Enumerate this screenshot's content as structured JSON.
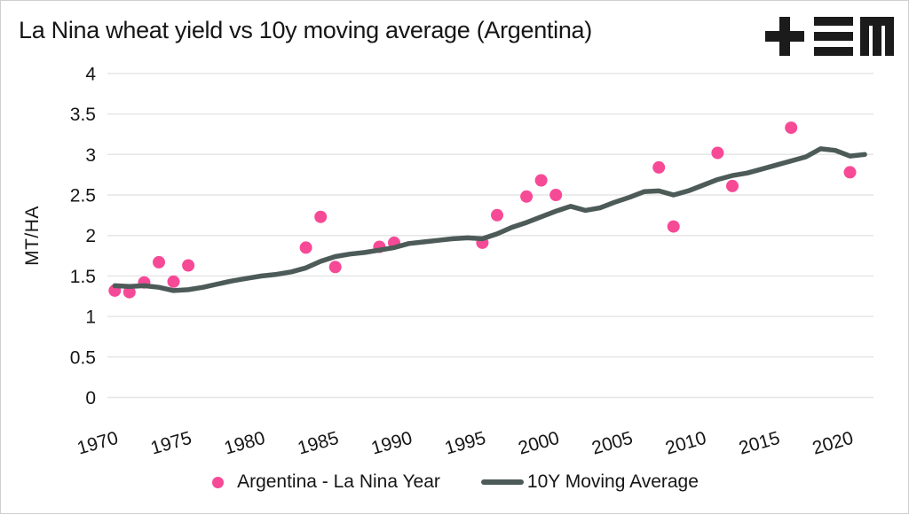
{
  "header": {
    "logo_icon": "tem-logo"
  },
  "colors": {
    "scatter": "#f64a97",
    "line": "#4d5b58",
    "grid": "#e6e6e6",
    "text": "#161616",
    "logo": "#1b1b1b",
    "background": "#ffffff"
  },
  "chart_data": {
    "type": "scatter",
    "title": "La Nina wheat yield vs 10y moving average (Argentina)",
    "xlabel": "",
    "ylabel": "MT/HA",
    "xlim": [
      1969.5,
      2021.6
    ],
    "ylim": [
      0,
      4
    ],
    "x_ticks": [
      1970,
      1975,
      1980,
      1985,
      1990,
      1995,
      2000,
      2005,
      2010,
      2015,
      2020
    ],
    "y_ticks": [
      "0",
      "0.5",
      "1",
      "1.5",
      "2",
      "2.5",
      "3",
      "3.5",
      "4"
    ],
    "grid": "horizontal",
    "legend_position": "bottom",
    "series": [
      {
        "name": "Argentina - La Nina Year",
        "type": "scatter",
        "color": "#f64a97",
        "x": [
          1970,
          1971,
          1972,
          1973,
          1974,
          1975,
          1983,
          1984,
          1985,
          1988,
          1989,
          1995,
          1996,
          1998,
          1999,
          2000,
          2007,
          2008,
          2011,
          2012,
          2016,
          2020
        ],
        "y": [
          1.32,
          1.3,
          1.42,
          1.67,
          1.43,
          1.63,
          1.85,
          2.23,
          1.61,
          1.86,
          1.91,
          1.91,
          2.25,
          2.48,
          2.68,
          2.5,
          2.84,
          2.11,
          3.02,
          2.61,
          3.33,
          2.78
        ]
      },
      {
        "name": "10Y Moving Average",
        "type": "line",
        "color": "#4d5b58",
        "x": [
          1970,
          1971,
          1972,
          1973,
          1974,
          1975,
          1976,
          1977,
          1978,
          1979,
          1980,
          1981,
          1982,
          1983,
          1984,
          1985,
          1986,
          1987,
          1988,
          1989,
          1990,
          1991,
          1992,
          1993,
          1994,
          1995,
          1996,
          1997,
          1998,
          1999,
          2000,
          2001,
          2002,
          2003,
          2004,
          2005,
          2006,
          2007,
          2008,
          2009,
          2010,
          2011,
          2012,
          2013,
          2014,
          2015,
          2016,
          2017,
          2018,
          2019,
          2020,
          2021
        ],
        "y": [
          1.38,
          1.37,
          1.38,
          1.36,
          1.32,
          1.33,
          1.36,
          1.4,
          1.44,
          1.47,
          1.5,
          1.52,
          1.55,
          1.6,
          1.68,
          1.74,
          1.77,
          1.79,
          1.82,
          1.85,
          1.9,
          1.92,
          1.94,
          1.96,
          1.97,
          1.96,
          2.02,
          2.1,
          2.16,
          2.23,
          2.3,
          2.36,
          2.31,
          2.34,
          2.41,
          2.47,
          2.54,
          2.55,
          2.5,
          2.55,
          2.62,
          2.69,
          2.74,
          2.77,
          2.82,
          2.87,
          2.92,
          2.97,
          3.07,
          3.05,
          2.98,
          3.0
        ]
      }
    ]
  }
}
